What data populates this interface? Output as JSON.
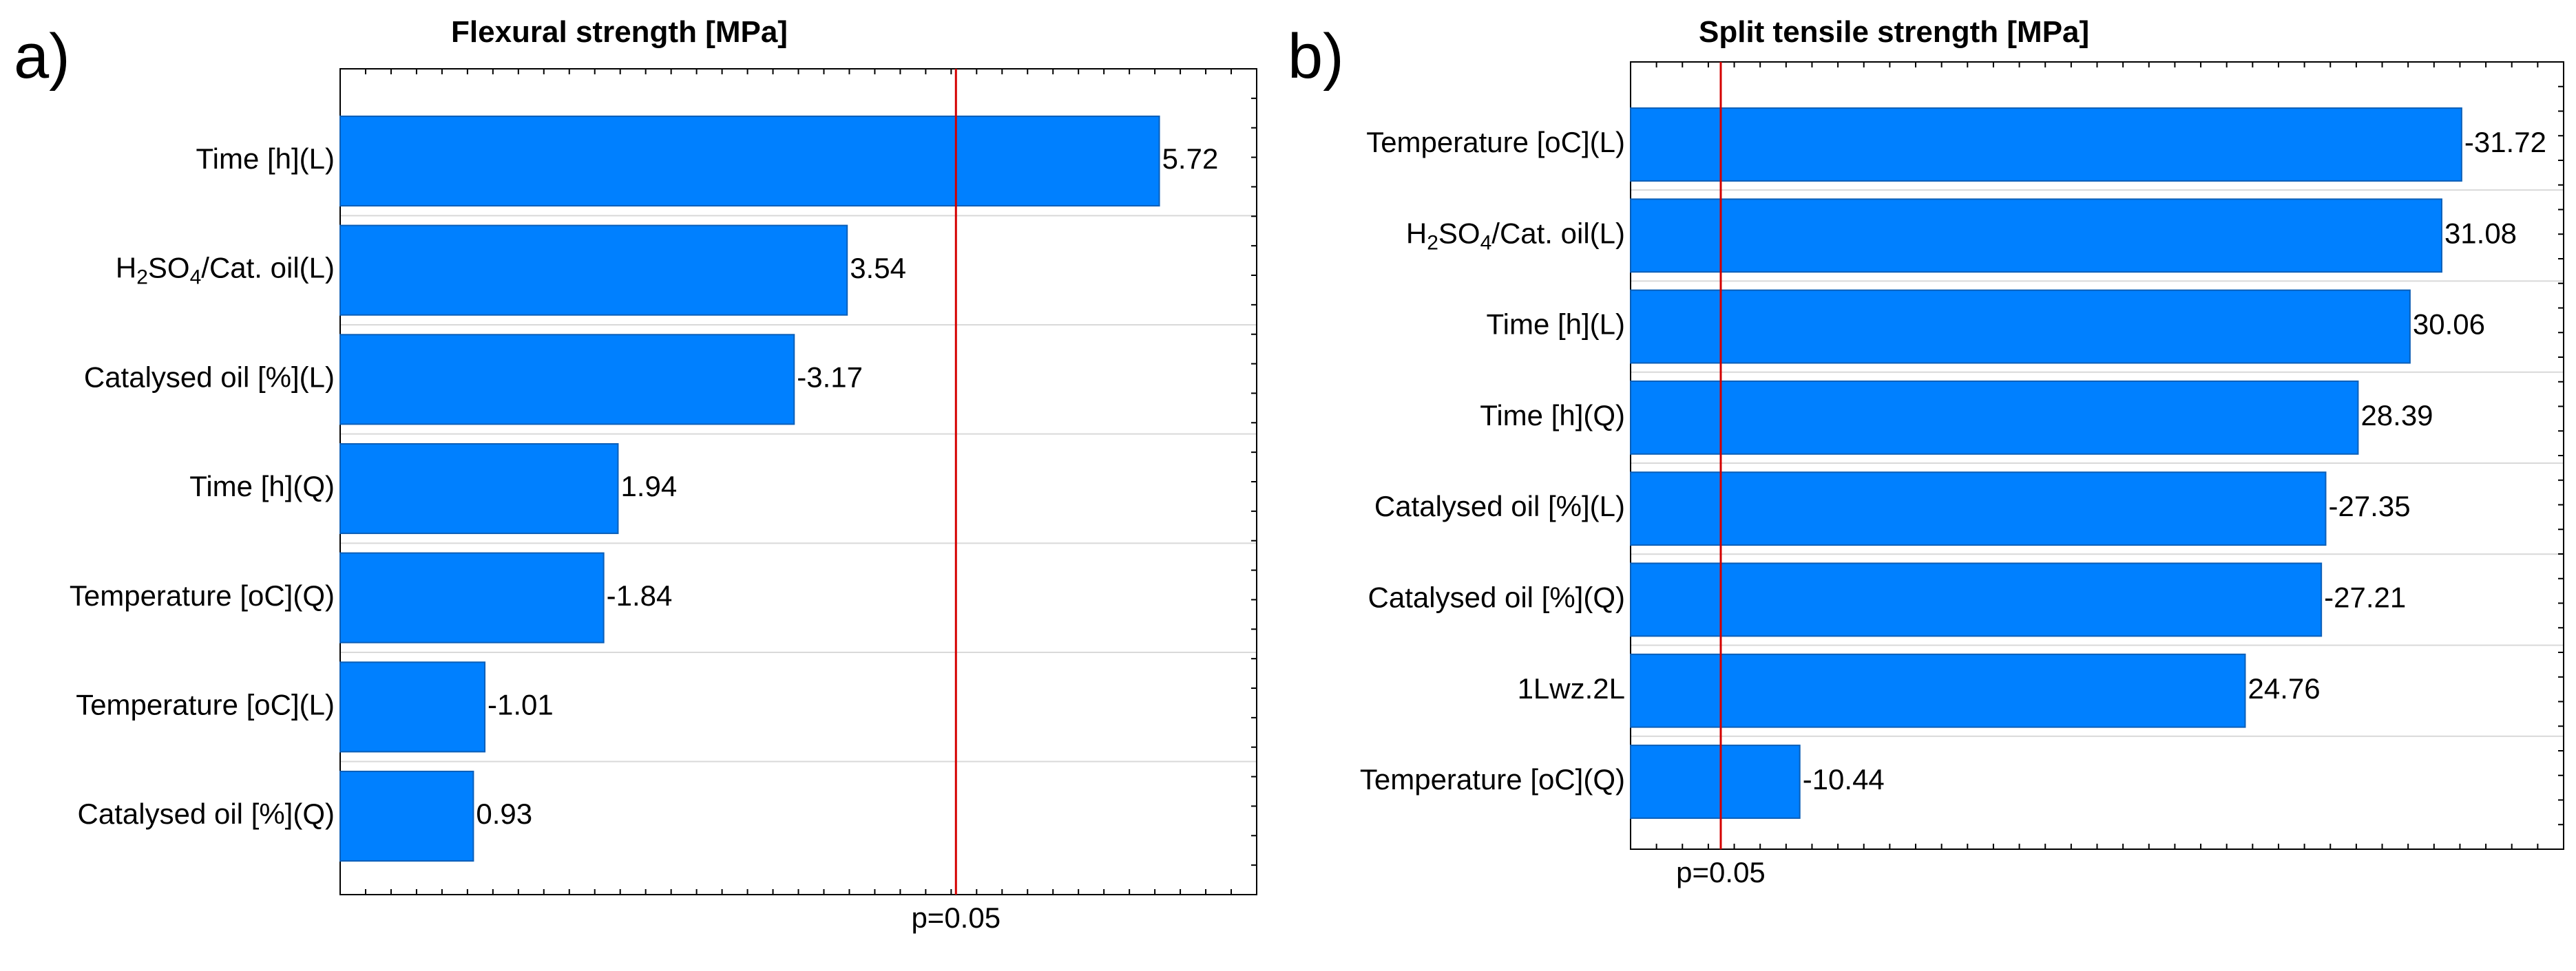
{
  "chart_data": [
    {
      "panel": "a)",
      "type": "bar",
      "orientation": "horizontal",
      "title": "Flexural strength [MPa]",
      "categories": [
        "Time [h](L)",
        "H2SO4/Cat. oil(L)",
        "Catalysed oil [%](L)",
        "Time [h](Q)",
        "Temperature [oC](Q)",
        "Temperature [oC](L)",
        "Catalysed oil [%](Q)"
      ],
      "values": [
        5.72,
        3.54,
        3.17,
        1.94,
        1.84,
        1.01,
        0.93
      ],
      "value_labels": [
        "5.72",
        "3.54",
        "-3.17",
        "1.94",
        "-1.84",
        "-1.01",
        "0.93"
      ],
      "reference_line": {
        "value": 4.3,
        "label": "p=0.05",
        "color": "#d40000"
      },
      "xlim": [
        0,
        6.4
      ],
      "bar_color": "#0080ff",
      "grid": true
    },
    {
      "panel": "b)",
      "type": "bar",
      "orientation": "horizontal",
      "title": "Split tensile strength [MPa]",
      "categories": [
        "Temperature [oC](L)",
        "H2SO4/Cat. oil(L)",
        "Time [h](L)",
        "Time [h](Q)",
        "Catalysed oil [%](L)",
        "Catalysed oil [%](Q)",
        "1Lwz.2L",
        "Temperature [oC](Q)"
      ],
      "values": [
        31.72,
        31.08,
        30.06,
        28.39,
        27.35,
        27.21,
        24.76,
        10.44
      ],
      "value_labels": [
        "-31.72",
        "31.08",
        "30.06",
        "28.39",
        "-27.35",
        "-27.21",
        "24.76",
        "-10.44"
      ],
      "reference_line": {
        "value": 7.9,
        "label": "p=0.05",
        "color": "#d40000"
      },
      "xlim": [
        5,
        35
      ],
      "bar_color": "#0080ff",
      "grid": true
    }
  ]
}
